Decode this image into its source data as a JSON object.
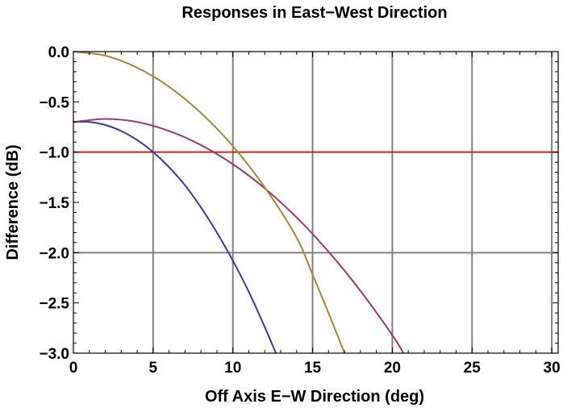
{
  "chart_data": {
    "type": "line",
    "title": "Responses in East−West Direction",
    "xlabel": "Off Axis E−W Direction (deg)",
    "ylabel": "Difference (dB)",
    "xlim": [
      0,
      30.4
    ],
    "ylim": [
      -3.0,
      0.0
    ],
    "x_ticks": [
      0,
      5,
      10,
      15,
      20,
      25,
      30
    ],
    "x_tick_labels": [
      "0",
      "5",
      "10",
      "15",
      "20",
      "25",
      "30"
    ],
    "y_ticks": [
      0.0,
      -0.5,
      -1.0,
      -1.5,
      -2.0,
      -2.5,
      -3.0
    ],
    "y_tick_labels": [
      "0.0",
      "−0.5",
      "−1.0",
      "−1.5",
      "−2.0",
      "−2.5",
      "−3.0"
    ],
    "gridlines_x": [
      5,
      10,
      15,
      20,
      25,
      30
    ],
    "gridlines_y": [
      -2.0
    ],
    "reference_line": {
      "y": -1.0,
      "color": "#d0241b"
    },
    "series": [
      {
        "color": "#3b3b94",
        "x": [
          0,
          1,
          2,
          3,
          4,
          5,
          6,
          7,
          8,
          9,
          10,
          11,
          12,
          12.7
        ],
        "y": [
          -0.7,
          -0.7,
          -0.73,
          -0.79,
          -0.88,
          -1.0,
          -1.15,
          -1.33,
          -1.55,
          -1.8,
          -2.08,
          -2.39,
          -2.74,
          -3.0
        ]
      },
      {
        "color": "#9c3a6e",
        "x": [
          0,
          2,
          4,
          6,
          8,
          10,
          12,
          14,
          16,
          18,
          20,
          20.7
        ],
        "y": [
          -0.7,
          -0.67,
          -0.7,
          -0.79,
          -0.93,
          -1.12,
          -1.36,
          -1.65,
          -1.99,
          -2.38,
          -2.82,
          -3.0
        ]
      },
      {
        "color": "#a08a3a",
        "x": [
          0,
          2,
          4,
          6,
          8,
          10,
          12,
          14,
          15,
          16,
          17
        ],
        "y": [
          0.0,
          -0.04,
          -0.16,
          -0.35,
          -0.61,
          -0.94,
          -1.35,
          -1.85,
          -2.22,
          -2.6,
          -3.0
        ]
      }
    ]
  }
}
